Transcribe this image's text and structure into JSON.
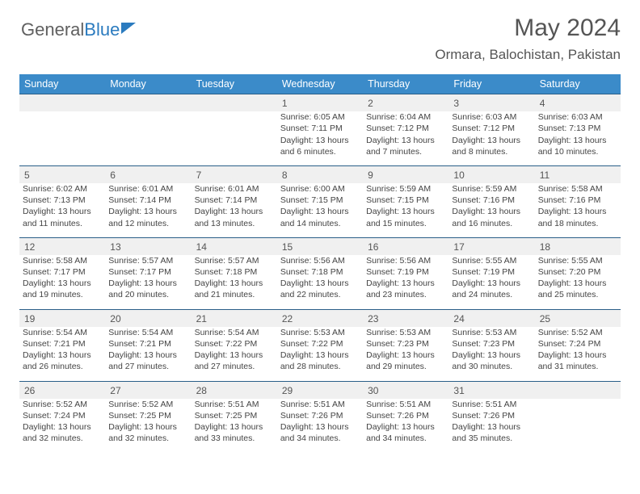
{
  "brand": {
    "part1": "General",
    "part2": "Blue"
  },
  "title": "May 2024",
  "location": "Ormara, Balochistan, Pakistan",
  "colors": {
    "header_bg": "#3b8bc9",
    "header_text": "#ffffff",
    "daynum_bg": "#f0f0f0",
    "rule": "#2a5e88",
    "body_text": "#444444",
    "title_text": "#555555"
  },
  "weekdays": [
    "Sunday",
    "Monday",
    "Tuesday",
    "Wednesday",
    "Thursday",
    "Friday",
    "Saturday"
  ],
  "weeks": [
    [
      null,
      null,
      null,
      {
        "n": "1",
        "sunrise": "Sunrise: 6:05 AM",
        "sunset": "Sunset: 7:11 PM",
        "daylight": "Daylight: 13 hours and 6 minutes."
      },
      {
        "n": "2",
        "sunrise": "Sunrise: 6:04 AM",
        "sunset": "Sunset: 7:12 PM",
        "daylight": "Daylight: 13 hours and 7 minutes."
      },
      {
        "n": "3",
        "sunrise": "Sunrise: 6:03 AM",
        "sunset": "Sunset: 7:12 PM",
        "daylight": "Daylight: 13 hours and 8 minutes."
      },
      {
        "n": "4",
        "sunrise": "Sunrise: 6:03 AM",
        "sunset": "Sunset: 7:13 PM",
        "daylight": "Daylight: 13 hours and 10 minutes."
      }
    ],
    [
      {
        "n": "5",
        "sunrise": "Sunrise: 6:02 AM",
        "sunset": "Sunset: 7:13 PM",
        "daylight": "Daylight: 13 hours and 11 minutes."
      },
      {
        "n": "6",
        "sunrise": "Sunrise: 6:01 AM",
        "sunset": "Sunset: 7:14 PM",
        "daylight": "Daylight: 13 hours and 12 minutes."
      },
      {
        "n": "7",
        "sunrise": "Sunrise: 6:01 AM",
        "sunset": "Sunset: 7:14 PM",
        "daylight": "Daylight: 13 hours and 13 minutes."
      },
      {
        "n": "8",
        "sunrise": "Sunrise: 6:00 AM",
        "sunset": "Sunset: 7:15 PM",
        "daylight": "Daylight: 13 hours and 14 minutes."
      },
      {
        "n": "9",
        "sunrise": "Sunrise: 5:59 AM",
        "sunset": "Sunset: 7:15 PM",
        "daylight": "Daylight: 13 hours and 15 minutes."
      },
      {
        "n": "10",
        "sunrise": "Sunrise: 5:59 AM",
        "sunset": "Sunset: 7:16 PM",
        "daylight": "Daylight: 13 hours and 16 minutes."
      },
      {
        "n": "11",
        "sunrise": "Sunrise: 5:58 AM",
        "sunset": "Sunset: 7:16 PM",
        "daylight": "Daylight: 13 hours and 18 minutes."
      }
    ],
    [
      {
        "n": "12",
        "sunrise": "Sunrise: 5:58 AM",
        "sunset": "Sunset: 7:17 PM",
        "daylight": "Daylight: 13 hours and 19 minutes."
      },
      {
        "n": "13",
        "sunrise": "Sunrise: 5:57 AM",
        "sunset": "Sunset: 7:17 PM",
        "daylight": "Daylight: 13 hours and 20 minutes."
      },
      {
        "n": "14",
        "sunrise": "Sunrise: 5:57 AM",
        "sunset": "Sunset: 7:18 PM",
        "daylight": "Daylight: 13 hours and 21 minutes."
      },
      {
        "n": "15",
        "sunrise": "Sunrise: 5:56 AM",
        "sunset": "Sunset: 7:18 PM",
        "daylight": "Daylight: 13 hours and 22 minutes."
      },
      {
        "n": "16",
        "sunrise": "Sunrise: 5:56 AM",
        "sunset": "Sunset: 7:19 PM",
        "daylight": "Daylight: 13 hours and 23 minutes."
      },
      {
        "n": "17",
        "sunrise": "Sunrise: 5:55 AM",
        "sunset": "Sunset: 7:19 PM",
        "daylight": "Daylight: 13 hours and 24 minutes."
      },
      {
        "n": "18",
        "sunrise": "Sunrise: 5:55 AM",
        "sunset": "Sunset: 7:20 PM",
        "daylight": "Daylight: 13 hours and 25 minutes."
      }
    ],
    [
      {
        "n": "19",
        "sunrise": "Sunrise: 5:54 AM",
        "sunset": "Sunset: 7:21 PM",
        "daylight": "Daylight: 13 hours and 26 minutes."
      },
      {
        "n": "20",
        "sunrise": "Sunrise: 5:54 AM",
        "sunset": "Sunset: 7:21 PM",
        "daylight": "Daylight: 13 hours and 27 minutes."
      },
      {
        "n": "21",
        "sunrise": "Sunrise: 5:54 AM",
        "sunset": "Sunset: 7:22 PM",
        "daylight": "Daylight: 13 hours and 27 minutes."
      },
      {
        "n": "22",
        "sunrise": "Sunrise: 5:53 AM",
        "sunset": "Sunset: 7:22 PM",
        "daylight": "Daylight: 13 hours and 28 minutes."
      },
      {
        "n": "23",
        "sunrise": "Sunrise: 5:53 AM",
        "sunset": "Sunset: 7:23 PM",
        "daylight": "Daylight: 13 hours and 29 minutes."
      },
      {
        "n": "24",
        "sunrise": "Sunrise: 5:53 AM",
        "sunset": "Sunset: 7:23 PM",
        "daylight": "Daylight: 13 hours and 30 minutes."
      },
      {
        "n": "25",
        "sunrise": "Sunrise: 5:52 AM",
        "sunset": "Sunset: 7:24 PM",
        "daylight": "Daylight: 13 hours and 31 minutes."
      }
    ],
    [
      {
        "n": "26",
        "sunrise": "Sunrise: 5:52 AM",
        "sunset": "Sunset: 7:24 PM",
        "daylight": "Daylight: 13 hours and 32 minutes."
      },
      {
        "n": "27",
        "sunrise": "Sunrise: 5:52 AM",
        "sunset": "Sunset: 7:25 PM",
        "daylight": "Daylight: 13 hours and 32 minutes."
      },
      {
        "n": "28",
        "sunrise": "Sunrise: 5:51 AM",
        "sunset": "Sunset: 7:25 PM",
        "daylight": "Daylight: 13 hours and 33 minutes."
      },
      {
        "n": "29",
        "sunrise": "Sunrise: 5:51 AM",
        "sunset": "Sunset: 7:26 PM",
        "daylight": "Daylight: 13 hours and 34 minutes."
      },
      {
        "n": "30",
        "sunrise": "Sunrise: 5:51 AM",
        "sunset": "Sunset: 7:26 PM",
        "daylight": "Daylight: 13 hours and 34 minutes."
      },
      {
        "n": "31",
        "sunrise": "Sunrise: 5:51 AM",
        "sunset": "Sunset: 7:26 PM",
        "daylight": "Daylight: 13 hours and 35 minutes."
      },
      null
    ]
  ]
}
